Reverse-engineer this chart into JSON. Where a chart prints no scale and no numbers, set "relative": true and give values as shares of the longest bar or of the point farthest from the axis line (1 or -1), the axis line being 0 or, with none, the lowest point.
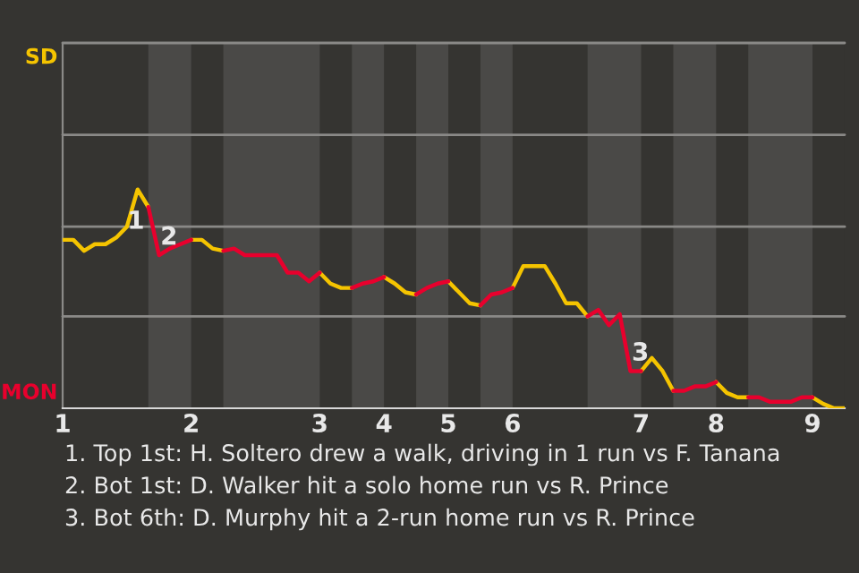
{
  "chart_data": {
    "type": "line",
    "relative": true,
    "categories": [
      "1",
      null,
      null,
      null,
      null,
      null,
      null,
      null,
      null,
      null,
      null,
      null,
      "2",
      null,
      null,
      null,
      null,
      null,
      null,
      null,
      null,
      null,
      null,
      null,
      "3",
      null,
      null,
      null,
      null,
      null,
      "4",
      null,
      null,
      null,
      null,
      null,
      "5",
      null,
      null,
      null,
      null,
      null,
      "6",
      null,
      null,
      null,
      null,
      null,
      null,
      null,
      null,
      null,
      null,
      null,
      "7",
      null,
      null,
      null,
      null,
      null,
      null,
      "8",
      null,
      null,
      null,
      null,
      null,
      null,
      null,
      null,
      "9",
      null,
      null,
      null
    ],
    "series": [
      {
        "name": "SD",
        "color": "#f5c400",
        "values": [
          0.77,
          0.77,
          0.72,
          0.75,
          0.75,
          0.78,
          0.83,
          1,
          0.92,
          null,
          null,
          null,
          0.77,
          0.77,
          0.73,
          0.72,
          null,
          null,
          null,
          null,
          null,
          null,
          null,
          null,
          0.62,
          0.57,
          0.55,
          0.55,
          null,
          null,
          0.6,
          0.57,
          0.53,
          0.52,
          null,
          null,
          0.58,
          0.53,
          0.48,
          0.47,
          null,
          null,
          0.55,
          0.65,
          0.65,
          0.65,
          0.57,
          0.48,
          0.48,
          0.42,
          null,
          null,
          null,
          null,
          0.17,
          0.23,
          0.17,
          0.08,
          null,
          null,
          null,
          0.12,
          0.07,
          0.05,
          0.05,
          null,
          null,
          null,
          null,
          null,
          0.05,
          0.02,
          0,
          0
        ]
      },
      {
        "name": "MON",
        "color": "#e8002d",
        "values": [
          null,
          null,
          null,
          null,
          null,
          null,
          null,
          null,
          0.92,
          0.7,
          0.73,
          0.75,
          0.77,
          null,
          null,
          0.72,
          0.73,
          0.7,
          0.7,
          0.7,
          0.7,
          0.62,
          0.62,
          0.58,
          0.62,
          null,
          null,
          0.55,
          0.57,
          0.58,
          0.6,
          null,
          null,
          0.52,
          0.55,
          0.57,
          0.58,
          null,
          null,
          0.47,
          0.52,
          0.53,
          0.55,
          null,
          null,
          null,
          null,
          null,
          null,
          0.42,
          0.45,
          0.38,
          0.43,
          0.17,
          0.17,
          null,
          null,
          0.08,
          0.08,
          0.1,
          0.1,
          0.12,
          null,
          null,
          0.05,
          0.05,
          0.03,
          0.03,
          0.03,
          0.05,
          0.05,
          null,
          null,
          null
        ]
      }
    ],
    "ref_lines": [
      {
        "axis": "y",
        "value": 0.42,
        "color": "#8a8987"
      },
      {
        "axis": "y",
        "value": 0.83,
        "color": "#8a8987"
      },
      {
        "axis": "y",
        "value": 1.25,
        "color": "#8a8987"
      },
      {
        "axis": "y",
        "value": 1.67,
        "color": "#8a8987"
      }
    ],
    "legend": "left",
    "marker": "none",
    "line_style": "solid",
    "annotations": [
      {
        "text": "1",
        "y": 0.92
      },
      {
        "text": "2",
        "y": 0.7
      },
      {
        "text": "3",
        "y": 0.17
      },
      "1. Top 1st: H. Soltero drew a walk, driving in 1 run vs F. Tanana",
      "2. Bot 1st: D. Walker hit a solo home run vs R. Prince",
      "3. Bot 6th: D. Murphy hit a 2-run home run vs R. Prince"
    ]
  }
}
